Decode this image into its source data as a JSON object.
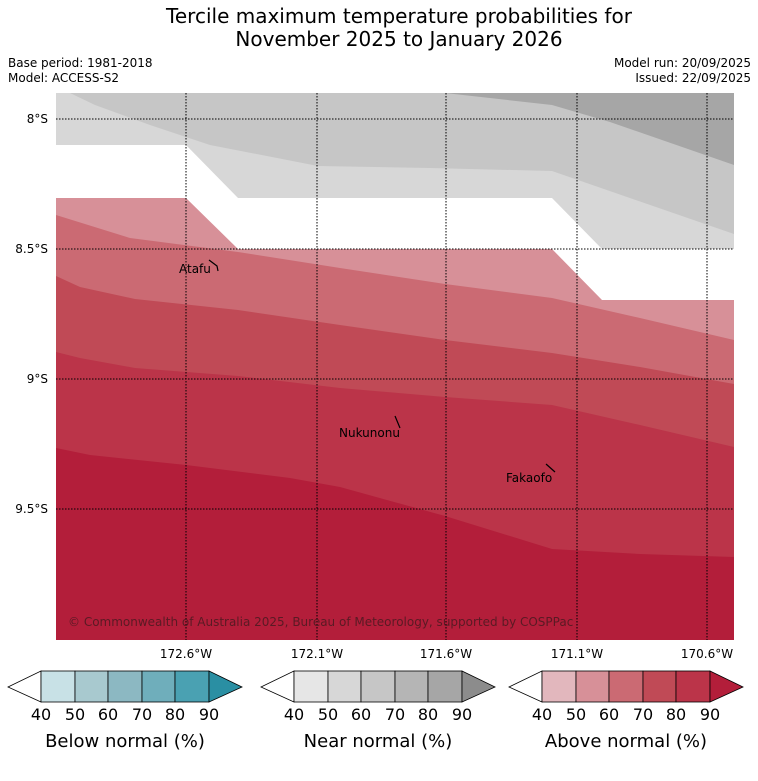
{
  "title": {
    "line1": "Tercile maximum temperature probabilities for",
    "line2": "November 2025 to January 2026"
  },
  "meta": {
    "base_period": "Base period: 1981-2018",
    "model": "Model: ACCESS-S2",
    "model_run": "Model run: 20/09/2025",
    "issued": "Issued: 22/09/2025"
  },
  "map": {
    "lat_labels": [
      "8°S",
      "8.5°S",
      "9°S",
      "9.5°S"
    ],
    "lon_labels": [
      "172.6°W",
      "172.1°W",
      "171.6°W",
      "171.1°W",
      "170.6°W"
    ],
    "places": [
      {
        "name": "Atafu"
      },
      {
        "name": "Nukunonu"
      },
      {
        "name": "Fakaofo"
      }
    ],
    "copyright": "© Commonwealth of Australia 2025, Bureau of Meteorology, supported by COSPPac",
    "above_colors": [
      "#d79098",
      "#cb6a73",
      "#c04a56",
      "#bb3449",
      "#b31e3a"
    ],
    "near_colors": [
      "#d7d7d7",
      "#c6c6c6",
      "#a6a6a6"
    ]
  },
  "colorbars": [
    {
      "label": "Below normal (%)",
      "ticks": [
        "40",
        "50",
        "60",
        "70",
        "80",
        "90"
      ],
      "colors": [
        "#ffffff",
        "#c8e1e6",
        "#a8c9cf",
        "#8cb8c2",
        "#6faebb",
        "#4aa1b2",
        "#2a8fa3"
      ]
    },
    {
      "label": "Near normal (%)",
      "ticks": [
        "40",
        "50",
        "60",
        "70",
        "80",
        "90"
      ],
      "colors": [
        "#ffffff",
        "#e6e6e6",
        "#d7d7d7",
        "#c6c6c6",
        "#b5b5b5",
        "#a6a6a6",
        "#8c8c8c"
      ]
    },
    {
      "label": "Above normal (%)",
      "ticks": [
        "40",
        "50",
        "60",
        "70",
        "80",
        "90"
      ],
      "colors": [
        "#ffffff",
        "#e2b7bd",
        "#d79098",
        "#cb6a73",
        "#c04a56",
        "#bb3449",
        "#b31e3a"
      ]
    }
  ]
}
